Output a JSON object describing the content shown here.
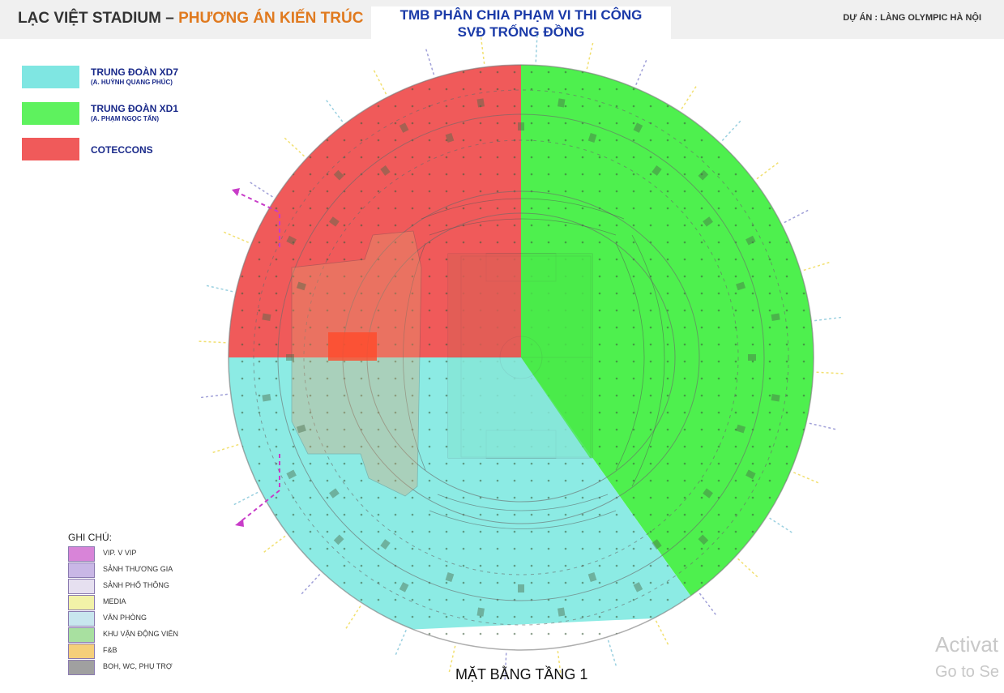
{
  "header": {
    "title_main": "LẠC VIỆT STADIUM – ",
    "title_accent": "PHƯƠNG ÁN KIẾN TRÚC",
    "center_line1": "TMB PHÂN CHIA PHẠM VI THI CÔNG",
    "center_line2": "SVĐ TRỐNG ĐỒNG",
    "project": "DỰ ÁN : LÀNG OLYMPIC HÀ NỘI"
  },
  "legend": [
    {
      "name": "TRUNG ĐOÀN XD7",
      "sub": "(A. HUỲNH QUANG PHÚC)",
      "color": "#7fe6e2"
    },
    {
      "name": "TRUNG ĐOÀN XD1",
      "sub": "(A. PHẠM NGỌC TẤN)",
      "color": "#5ef25e"
    },
    {
      "name": "COTECCONS",
      "sub": "",
      "color": "#f05a5a"
    }
  ],
  "notes": {
    "title": "GHI CHÚ:",
    "items": [
      {
        "label": "VIP. V VIP",
        "color": "#d884d8"
      },
      {
        "label": "SẢNH THƯƠNG GIA",
        "color": "#c9b7e6"
      },
      {
        "label": "SẢNH PHỔ THÔNG",
        "color": "#e6e0f0"
      },
      {
        "label": " MEDIA",
        "color": "#f2f2a8"
      },
      {
        "label": "VĂN PHÒNG",
        "color": "#c8e6ee"
      },
      {
        "label": "KHU VẬN ĐỘNG VIÊN",
        "color": "#a8e0a0"
      },
      {
        "label": "F&B",
        "color": "#f5cf7a"
      },
      {
        "label": "BOH, WC, PHỤ TRỢ",
        "color": "#a0a0a0"
      }
    ]
  },
  "plan": {
    "caption": "MẶT BẰNG TẦNG 1",
    "zone_colors": {
      "red": "#f05a5a",
      "green": "#4ef04e",
      "cyan": "#8cebe4"
    }
  },
  "watermark": {
    "line1": "Activat",
    "line2": "Go to Se"
  }
}
